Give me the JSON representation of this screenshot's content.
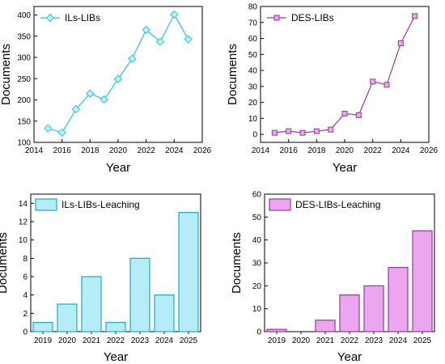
{
  "chart_data": [
    {
      "type": "line",
      "x": [
        2015,
        2016,
        2017,
        2018,
        2019,
        2020,
        2021,
        2022,
        2023,
        2024,
        2025
      ],
      "series": [
        {
          "name": "ILs-LIBs",
          "values": [
            133,
            123,
            178,
            215,
            201,
            249,
            297,
            365,
            337,
            401,
            343
          ]
        }
      ],
      "xlabel": "Year",
      "ylabel": "Documents",
      "xlim": [
        2014,
        2026
      ],
      "ylim": [
        100,
        420
      ],
      "xticks": [
        "2014",
        "2016",
        "2018",
        "2020",
        "2022",
        "2024",
        "2026"
      ],
      "yticks": [
        "100",
        "150",
        "200",
        "250",
        "300",
        "350",
        "400"
      ],
      "color": "#29c4dc",
      "marker": "diamond",
      "legend": "top-left",
      "grid": false
    },
    {
      "type": "line",
      "x": [
        2015,
        2016,
        2017,
        2018,
        2019,
        2020,
        2021,
        2022,
        2023,
        2024,
        2025
      ],
      "series": [
        {
          "name": "DES-LIBs",
          "values": [
            1,
            2,
            1,
            2,
            3,
            13,
            12,
            33,
            31,
            57,
            74
          ]
        }
      ],
      "xlabel": "Year",
      "ylabel": "Documents",
      "xlim": [
        2014,
        2026
      ],
      "ylim": [
        -5,
        80
      ],
      "xticks": [
        "2014",
        "2016",
        "2018",
        "2020",
        "2022",
        "2024",
        "2026"
      ],
      "yticks": [
        "0",
        "10",
        "20",
        "30",
        "40",
        "50",
        "60",
        "70",
        "80"
      ],
      "color": "#8e3c96",
      "marker_fill": "#eba6ee",
      "marker": "square",
      "legend": "top-left",
      "grid": false
    },
    {
      "type": "bar",
      "categories": [
        "2019",
        "2020",
        "2021",
        "2022",
        "2023",
        "2024",
        "2025"
      ],
      "series": [
        {
          "name": "ILs-LIBs-Leaching",
          "values": [
            1,
            3,
            6,
            1,
            8,
            4,
            13
          ]
        }
      ],
      "xlabel": "Year",
      "ylabel": "Documents",
      "ylim": [
        0,
        15
      ],
      "yticks": [
        "0",
        "2",
        "4",
        "6",
        "8",
        "10",
        "12",
        "14"
      ],
      "fill": "#b5ecf6",
      "stroke": "#1fa9c4",
      "legend": "top-left",
      "grid": false
    },
    {
      "type": "bar",
      "categories": [
        "2019",
        "2020",
        "2021",
        "2022",
        "2023",
        "2024",
        "2025"
      ],
      "series": [
        {
          "name": "DES-LIBs-Leaching",
          "values": [
            1,
            0,
            5,
            16,
            20,
            28,
            44
          ]
        }
      ],
      "xlabel": "Year",
      "ylabel": "Documents",
      "ylim": [
        0,
        60
      ],
      "yticks": [
        "0",
        "10",
        "20",
        "30",
        "40",
        "50",
        "60"
      ],
      "fill": "#eca6ef",
      "stroke": "#8e3c96",
      "legend": "top-left",
      "grid": false
    }
  ]
}
